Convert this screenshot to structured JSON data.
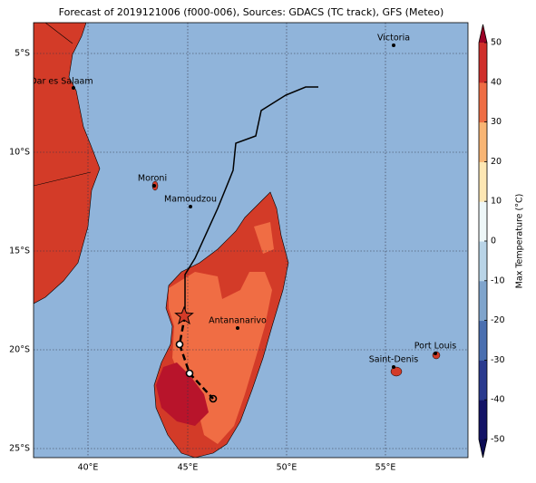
{
  "title": "Forecast of 2019121006 (f000-006), Sources: GDACS (TC track), GFS (Meteo)",
  "map": {
    "lat_labels": [
      "5°S",
      "10°S",
      "15°S",
      "20°S",
      "25°S"
    ],
    "lon_labels": [
      "40°E",
      "45°E",
      "50°E",
      "55°E"
    ],
    "cities": [
      {
        "name": "Victoria"
      },
      {
        "name": "Dar es Salaam"
      },
      {
        "name": "Moroni"
      },
      {
        "name": "Mamoudzou"
      },
      {
        "name": "Antananarivo"
      },
      {
        "name": "Saint-Denis"
      },
      {
        "name": "Port Louis"
      }
    ]
  },
  "colorbar": {
    "label": "Max Temperature (°C)",
    "lim": [
      -50,
      50
    ],
    "ticks": [
      -50,
      -40,
      -30,
      -20,
      -10,
      0,
      10,
      20,
      30,
      40,
      50
    ],
    "colors": [
      "#131366",
      "#2a3a8e",
      "#4a6fb0",
      "#7fa4cc",
      "#b9d4e7",
      "#eef7f8",
      "#fde7b4",
      "#f8b574",
      "#ee6d44",
      "#cf2f2b"
    ],
    "under_color": "#0c0c55",
    "over_color": "#9b0126"
  }
}
